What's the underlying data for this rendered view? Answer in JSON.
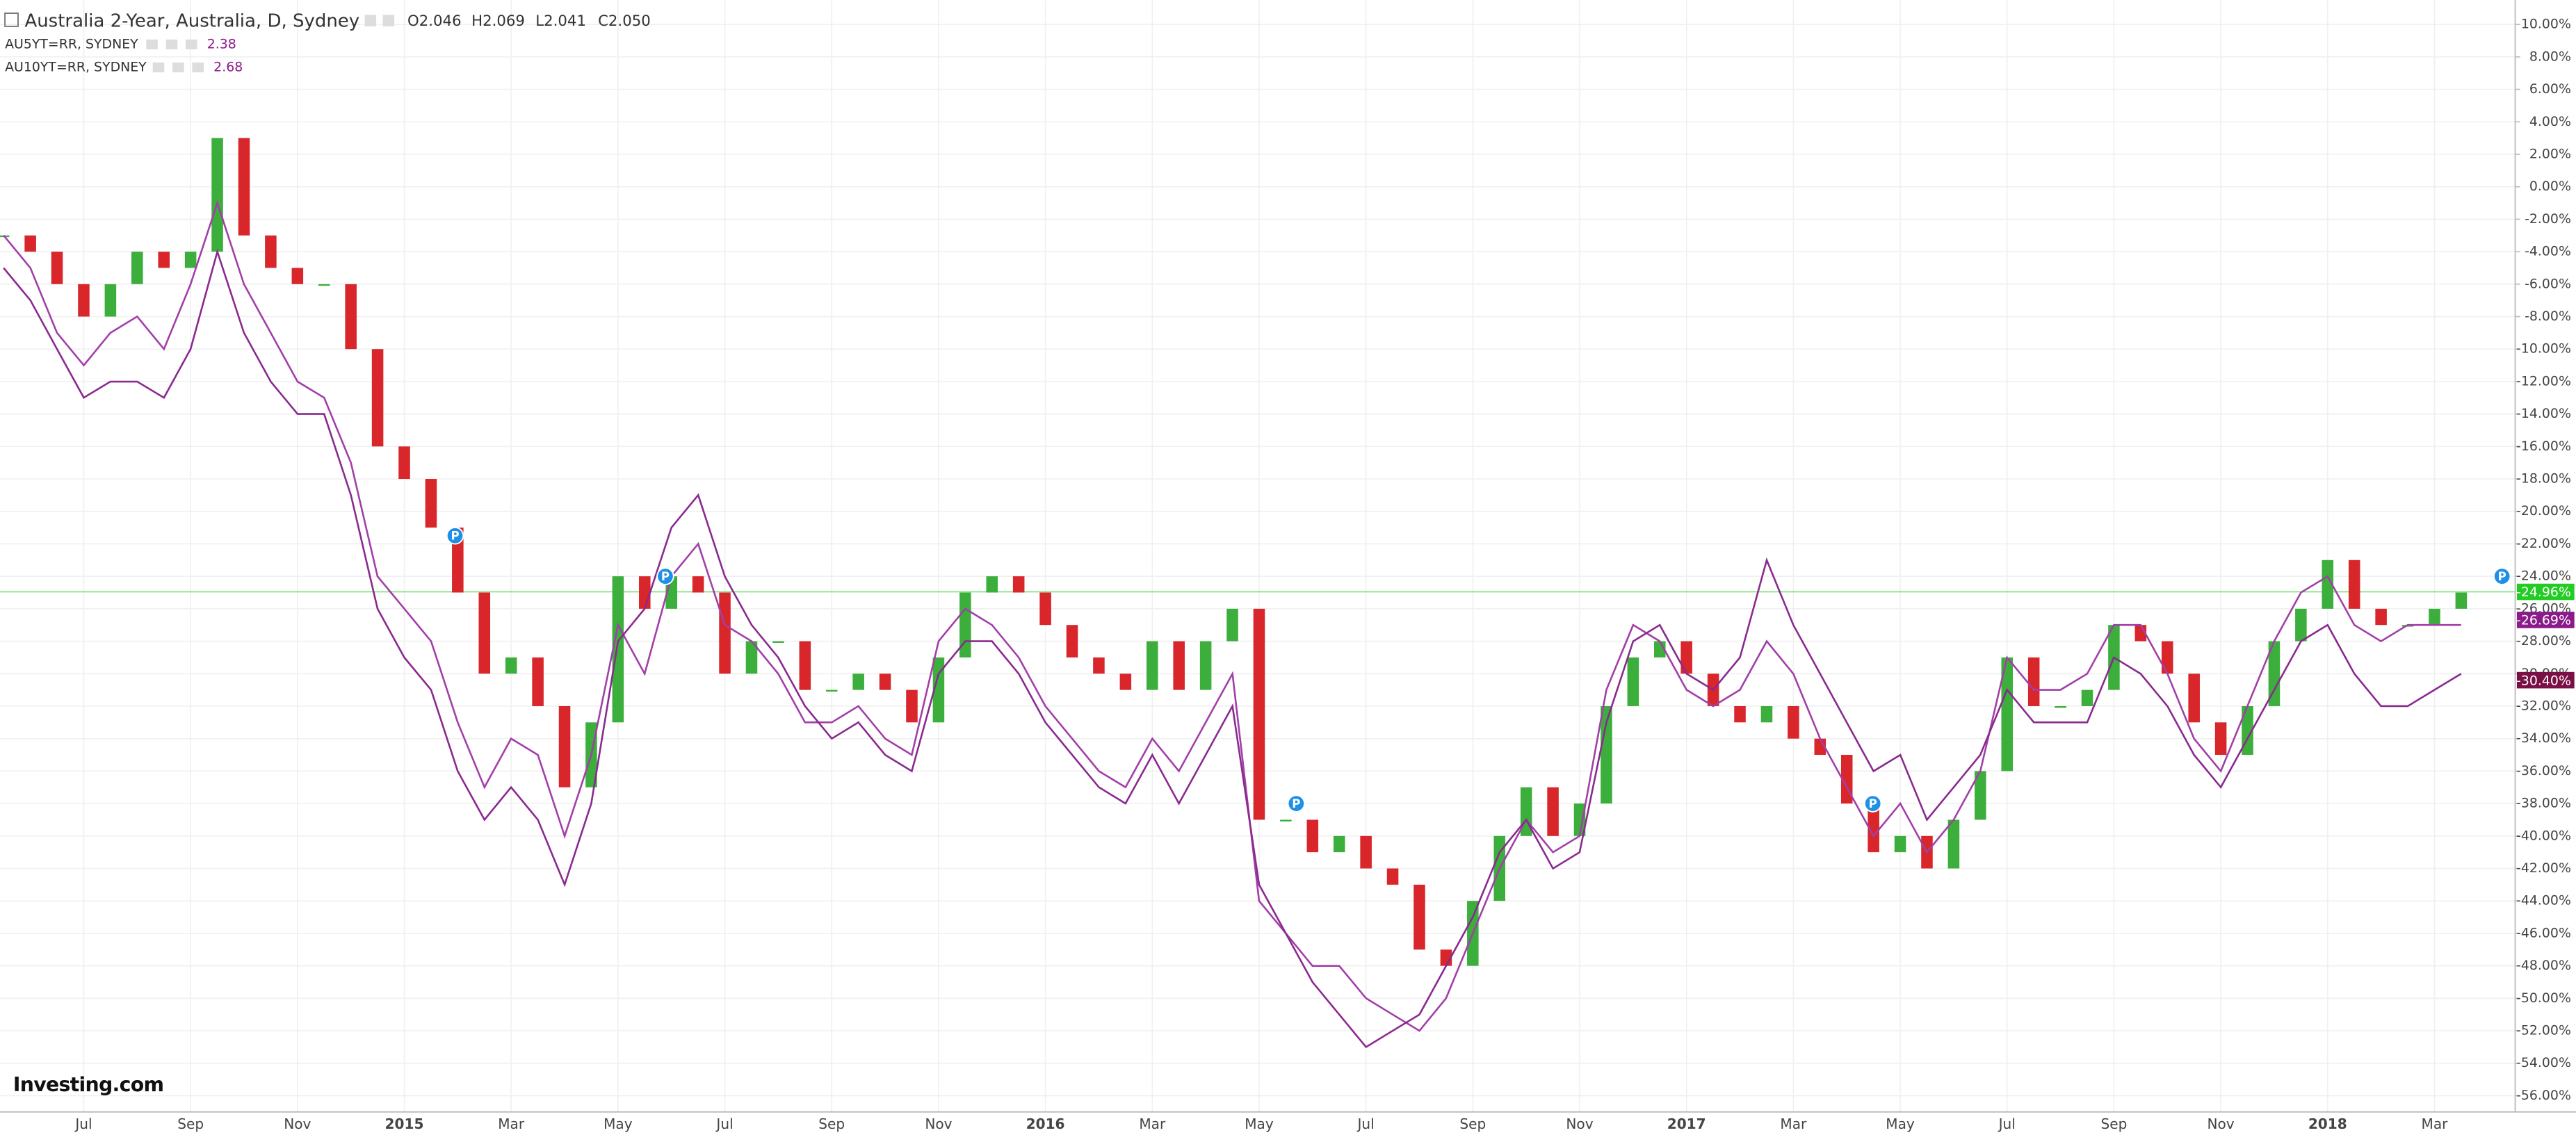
{
  "chart_data": {
    "type": "candlestick",
    "title": "Australia 2-Year, Australia, D, Sydney",
    "ohlc": [
      "O2.046",
      "H2.069",
      "L2.041",
      "C2.050"
    ],
    "overlays": [
      {
        "name": "AU5YT=RR, SYDNEY",
        "value": 2.38
      },
      {
        "name": "AU10YT=RR, SYDNEY",
        "value": 2.68
      }
    ],
    "categories": [
      null,
      null,
      null,
      "Jul",
      null,
      null,
      null,
      "Sep",
      null,
      null,
      null,
      "Nov",
      null,
      null,
      null,
      "2015",
      null,
      null,
      null,
      "Mar",
      null,
      null,
      null,
      "May",
      null,
      null,
      null,
      "Jul",
      null,
      null,
      null,
      "Sep",
      null,
      null,
      null,
      "Nov",
      null,
      null,
      null,
      "2016",
      null,
      null,
      null,
      "Mar",
      null,
      null,
      null,
      "May",
      null,
      null,
      null,
      "Jul",
      null,
      null,
      null,
      "Sep",
      null,
      null,
      null,
      "Nov",
      null,
      null,
      null,
      "2017",
      null,
      null,
      null,
      "Mar",
      null,
      null,
      null,
      "May",
      null,
      null,
      null,
      "Jul",
      null,
      null,
      null,
      "Sep",
      null,
      null,
      null,
      "Nov",
      null,
      null,
      null,
      "2018",
      null,
      null,
      null,
      "Mar",
      null
    ],
    "series": [
      {
        "color_up": "#3cae3c",
        "color_down": "#d8262b",
        "values": [
          -3,
          -4,
          -6,
          -8,
          -6,
          -4,
          -5,
          -4,
          3,
          -3,
          -5,
          -6,
          -6,
          -10,
          -16,
          -18,
          -21,
          -25,
          -30,
          -29,
          -32,
          -37,
          -33,
          -24,
          -26,
          -24,
          -25,
          -30,
          -28,
          -28,
          -31,
          -31,
          -30,
          -31,
          -33,
          -29,
          -25,
          -24,
          -25,
          -27,
          -29,
          -30,
          -31,
          -28,
          -31,
          -28,
          -26,
          -39,
          -39,
          -41,
          -40,
          -42,
          -43,
          -47,
          -48,
          -44,
          -40,
          -37,
          -40,
          -38,
          -32,
          -29,
          -28,
          -30,
          -32,
          -33,
          -32,
          -34,
          -35,
          -38,
          -41,
          -40,
          -42,
          -39,
          -36,
          -29,
          -32,
          -32,
          -31,
          -27,
          -28,
          -30,
          -33,
          -35,
          -32,
          -28,
          -26,
          -23,
          -26,
          -27,
          -27,
          -26,
          -25
        ]
      },
      {
        "name": "AU5YT=RR, SYDNEY",
        "color": "#a23fa8",
        "values": [
          -3,
          -5,
          -9,
          -11,
          -9,
          -8,
          -10,
          -6,
          -1,
          -6,
          -9,
          -12,
          -13,
          -17,
          -24,
          -26,
          -28,
          -33,
          -37,
          -34,
          -35,
          -40,
          -35,
          -27,
          -30,
          -24,
          -22,
          -27,
          -28,
          -30,
          -33,
          -33,
          -32,
          -34,
          -35,
          -28,
          -26,
          -27,
          -29,
          -32,
          -34,
          -36,
          -37,
          -34,
          -36,
          -33,
          -30,
          -44,
          -46,
          -48,
          -48,
          -50,
          -51,
          -52,
          -50,
          -46,
          -42,
          -39,
          -41,
          -40,
          -31,
          -27,
          -28,
          -31,
          -32,
          -31,
          -28,
          -30,
          -34,
          -37,
          -40,
          -38,
          -41,
          -39,
          -36,
          -29,
          -31,
          -31,
          -30,
          -27,
          -27,
          -30,
          -34,
          -36,
          -32,
          -28,
          -25,
          -24,
          -27,
          -28,
          -27,
          -27,
          -27
        ]
      },
      {
        "name": "AU10YT=RR, SYDNEY",
        "color": "#8a2a8f",
        "values": [
          -5,
          -7,
          -10,
          -13,
          -12,
          -12,
          -13,
          -10,
          -4,
          -9,
          -12,
          -14,
          -14,
          -19,
          -26,
          -29,
          -31,
          -36,
          -39,
          -37,
          -39,
          -43,
          -38,
          -28,
          -26,
          -21,
          -19,
          -24,
          -27,
          -29,
          -32,
          -34,
          -33,
          -35,
          -36,
          -30,
          -28,
          -28,
          -30,
          -33,
          -35,
          -37,
          -38,
          -35,
          -38,
          -35,
          -32,
          -43,
          -46,
          -49,
          -51,
          -53,
          -52,
          -51,
          -48,
          -45,
          -41,
          -39,
          -42,
          -41,
          -33,
          -28,
          -27,
          -30,
          -31,
          -29,
          -23,
          -27,
          -30,
          -33,
          -36,
          -35,
          -39,
          -37,
          -35,
          -31,
          -33,
          -33,
          -33,
          -29,
          -30,
          -32,
          -35,
          -37,
          -34,
          -31,
          -28,
          -27,
          -30,
          -32,
          -32,
          -31,
          -30
        ]
      }
    ],
    "ylim": [
      -57,
      11.5
    ],
    "yticks": [
      {
        "value": 10,
        "label": "10.00%"
      },
      {
        "value": 8,
        "label": "8.00%"
      },
      {
        "value": 6,
        "label": "6.00%"
      },
      {
        "value": 4,
        "label": "4.00%"
      },
      {
        "value": 2,
        "label": "2.00%"
      },
      {
        "value": 0,
        "label": "0.00%"
      },
      {
        "value": -2,
        "label": "-2.00%"
      },
      {
        "value": -4,
        "label": "-4.00%"
      },
      {
        "value": -6,
        "label": "-6.00%"
      },
      {
        "value": -8,
        "label": "-8.00%"
      },
      {
        "value": -10,
        "label": "-10.00%"
      },
      {
        "value": -12,
        "label": "-12.00%"
      },
      {
        "value": -14,
        "label": "-14.00%"
      },
      {
        "value": -16,
        "label": "-16.00%"
      },
      {
        "value": -18,
        "label": "-18.00%"
      },
      {
        "value": -20,
        "label": "-20.00%"
      },
      {
        "value": -22,
        "label": "-22.00%"
      },
      {
        "value": -24,
        "label": "-24.00%"
      },
      {
        "value": -26,
        "label": "-26.00%"
      },
      {
        "value": -28,
        "label": "-28.00%"
      },
      {
        "value": -30,
        "label": "-30.00%"
      },
      {
        "value": -32,
        "label": "-32.00%"
      },
      {
        "value": -34,
        "label": "-34.00%"
      },
      {
        "value": -36,
        "label": "-36.00%"
      },
      {
        "value": -38,
        "label": "-38.00%"
      },
      {
        "value": -40,
        "label": "-40.00%"
      },
      {
        "value": -42,
        "label": "-42.00%"
      },
      {
        "value": -44,
        "label": "-44.00%"
      },
      {
        "value": -46,
        "label": "-46.00%"
      },
      {
        "value": -48,
        "label": "-48.00%"
      },
      {
        "value": -50,
        "label": "-50.00%"
      },
      {
        "value": -52,
        "label": "-52.00%"
      },
      {
        "value": -54,
        "label": "-54.00%"
      },
      {
        "value": -56,
        "label": "-56.00%"
      }
    ],
    "grid": true,
    "price_labels": [
      {
        "value": -24.96,
        "label": "-24.96%",
        "color": "#22cc22"
      },
      {
        "value": -26.69,
        "label": "-26.69%",
        "color": "#8b1a8b"
      },
      {
        "value": -30.4,
        "label": "-30.40%",
        "color": "#7a0f45"
      }
    ],
    "event_markers": [
      {
        "label": "P",
        "value": -21.5
      },
      {
        "label": "P",
        "value": -24
      },
      {
        "label": "P",
        "value": -38
      },
      {
        "label": "P",
        "value": -38
      },
      {
        "label": "P",
        "value": -24
      }
    ],
    "logo": "Investing.com"
  }
}
